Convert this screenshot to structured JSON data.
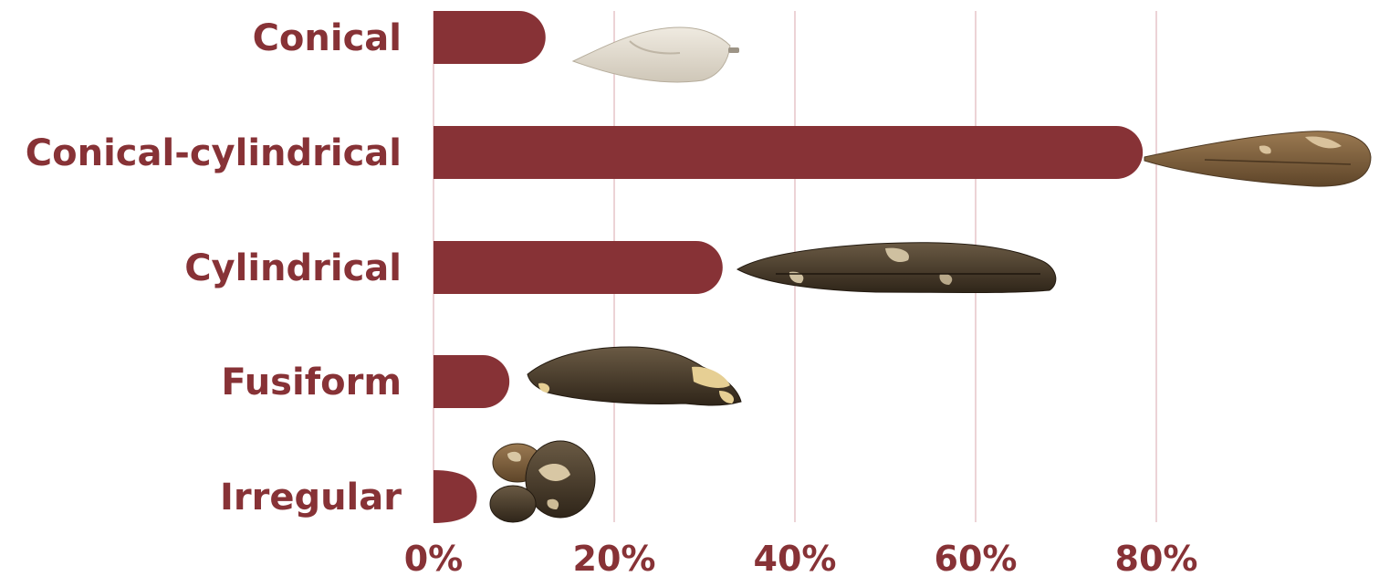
{
  "chart_data": {
    "type": "bar",
    "orientation": "horizontal",
    "categories": [
      "Conical",
      "Conical-cylindrical",
      "Cylindrical",
      "Fusiform",
      "Irregular"
    ],
    "values": [
      12.4,
      78.5,
      32.0,
      8.4,
      2.4
    ],
    "value_unit": "%",
    "xlim": [
      0,
      100
    ],
    "x_ticks": [
      "0%",
      "20%",
      "40%",
      "60%",
      "80%"
    ],
    "x_tick_values": [
      0,
      20,
      40,
      60,
      80
    ],
    "gridlines": true,
    "bar_color": "#873236",
    "gridline_color": "#ecd3d6",
    "title": "",
    "xlabel": "",
    "ylabel": "",
    "legend": "none",
    "illustrations": [
      "conical-tuber",
      "conical-cylindrical-tuber",
      "cylindrical-tuber",
      "fusiform-tuber",
      "irregular-tubers"
    ]
  }
}
